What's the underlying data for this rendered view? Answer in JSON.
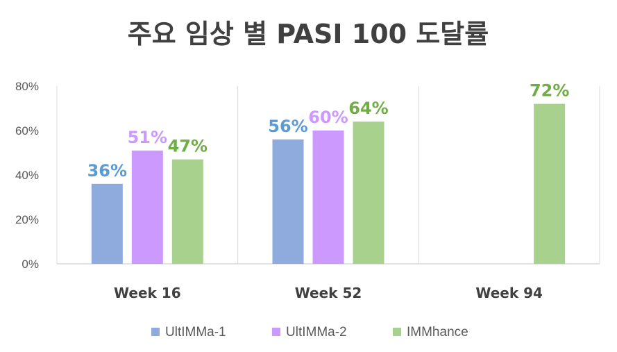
{
  "chart_data": {
    "type": "bar",
    "title": "주요 임상 별 PASI 100 도달률",
    "categories": [
      "Week 16",
      "Week 52",
      "Week 94"
    ],
    "ylim": [
      0,
      80
    ],
    "yticks": [
      "0%",
      "20%",
      "40%",
      "60%",
      "80%"
    ],
    "value_suffix": "%",
    "legend_position": "bottom",
    "gridlines": "vertical-separators",
    "series": [
      {
        "name": "UltIMMa-1",
        "values": [
          36,
          56,
          null
        ],
        "color": "#8FAADC",
        "label_color": "#5B9BD5"
      },
      {
        "name": "UltIMMa-2",
        "values": [
          51,
          60,
          null
        ],
        "color": "#CC99FF",
        "label_color": "#CC99FF"
      },
      {
        "name": "IMMhance",
        "values": [
          47,
          64,
          72
        ],
        "color": "#A9D18E",
        "label_color": "#70AD47"
      }
    ]
  }
}
